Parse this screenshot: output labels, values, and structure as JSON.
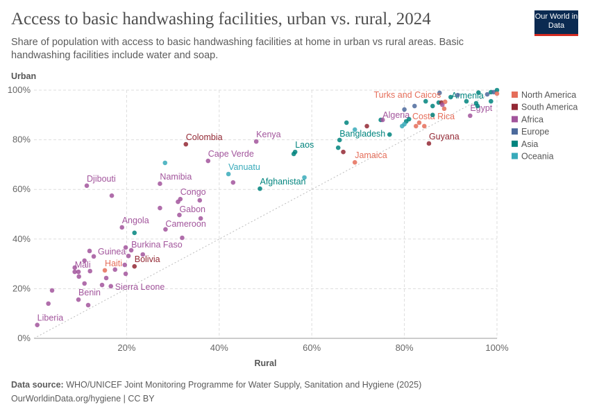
{
  "header": {
    "title": "Access to basic handwashing facilities, urban vs. rural, 2024",
    "subtitle": "Share of population with access to basic handwashing facilities at home in urban vs rural areas. Basic handwashing facilities include water and soap.",
    "logo": "Our World in Data"
  },
  "footer": {
    "source_label": "Data source:",
    "source": "WHO/UNICEF Joint Monitoring Programme for Water Supply, Sanitation and Hygiene (2025)",
    "url": "OurWorldinData.org/hygiene | CC BY"
  },
  "colors": {
    "North America": "#e56e5a",
    "South America": "#932834",
    "Africa": "#a2559c",
    "Europe": "#4c6a9c",
    "Asia": "#00847e",
    "Oceania": "#38aaba"
  },
  "chart_data": {
    "type": "scatter",
    "xlabel": "Rural",
    "ylabel": "Urban",
    "xlim": [
      0,
      100
    ],
    "ylim": [
      0,
      100
    ],
    "xticks": [
      "20%",
      "40%",
      "60%",
      "80%",
      "100%"
    ],
    "yticks": [
      "0%",
      "20%",
      "40%",
      "60%",
      "80%",
      "100%"
    ],
    "grid": true,
    "reference_line": "y = x",
    "legend_position": "right",
    "legend": [
      "North America",
      "South America",
      "Africa",
      "Europe",
      "Asia",
      "Oceania"
    ],
    "points": [
      {
        "x": 0.7,
        "y": 5.4,
        "r": "Africa",
        "label": "Liberia"
      },
      {
        "x": 3.1,
        "y": 14,
        "r": "Africa"
      },
      {
        "x": 3.9,
        "y": 19.3,
        "r": "Africa"
      },
      {
        "x": 9.6,
        "y": 15.6,
        "r": "Africa",
        "label": "Benin"
      },
      {
        "x": 11.7,
        "y": 13.4,
        "r": "Africa"
      },
      {
        "x": 8.8,
        "y": 28.5,
        "r": "Africa"
      },
      {
        "x": 8.8,
        "y": 26.8,
        "r": "Africa",
        "label": "Mali"
      },
      {
        "x": 9.6,
        "y": 26.8,
        "r": "Africa"
      },
      {
        "x": 12.1,
        "y": 27.1,
        "r": "Africa"
      },
      {
        "x": 9.7,
        "y": 24.9,
        "r": "Africa"
      },
      {
        "x": 10.9,
        "y": 31.3,
        "r": "Africa"
      },
      {
        "x": 10.9,
        "y": 22.1,
        "r": "Africa"
      },
      {
        "x": 12,
        "y": 35.2,
        "r": "Africa"
      },
      {
        "x": 12.9,
        "y": 33,
        "r": "Africa",
        "label": "Guinea"
      },
      {
        "x": 15.3,
        "y": 27.4,
        "r": "North America",
        "label": "Haiti"
      },
      {
        "x": 17.5,
        "y": 27.7,
        "r": "Africa"
      },
      {
        "x": 19.6,
        "y": 29.6,
        "r": "Africa"
      },
      {
        "x": 21.7,
        "y": 29,
        "r": "South America",
        "label": "Bolivia"
      },
      {
        "x": 19.8,
        "y": 26,
        "r": "Africa"
      },
      {
        "x": 15.6,
        "y": 24.3,
        "r": "Africa"
      },
      {
        "x": 14.7,
        "y": 21.5,
        "r": "Africa"
      },
      {
        "x": 16.6,
        "y": 21,
        "r": "Africa",
        "label": "Sierra Leone"
      },
      {
        "x": 19.8,
        "y": 36.6,
        "r": "Africa"
      },
      {
        "x": 21,
        "y": 35.5,
        "r": "Africa",
        "label": "Burkina Faso"
      },
      {
        "x": 20.4,
        "y": 33.2,
        "r": "Africa"
      },
      {
        "x": 23.5,
        "y": 33.8,
        "r": "Africa"
      },
      {
        "x": 19,
        "y": 44.7,
        "r": "Africa",
        "label": "Angola"
      },
      {
        "x": 21.7,
        "y": 42.5,
        "r": "Asia"
      },
      {
        "x": 28.4,
        "y": 43.9,
        "r": "Africa",
        "label": "Cameroon"
      },
      {
        "x": 32,
        "y": 40.5,
        "r": "Africa"
      },
      {
        "x": 31.4,
        "y": 49.7,
        "r": "Africa",
        "label": "Gabon"
      },
      {
        "x": 36,
        "y": 48.3,
        "r": "Africa"
      },
      {
        "x": 27.2,
        "y": 52.5,
        "r": "Africa"
      },
      {
        "x": 31.6,
        "y": 56.1,
        "r": "Africa",
        "label": "Congo"
      },
      {
        "x": 31.1,
        "y": 55,
        "r": "Africa"
      },
      {
        "x": 35.8,
        "y": 55.6,
        "r": "Africa"
      },
      {
        "x": 27.2,
        "y": 62.3,
        "r": "Africa",
        "label": "Namibia"
      },
      {
        "x": 11.4,
        "y": 61.5,
        "r": "Africa",
        "label": "Djibouti"
      },
      {
        "x": 16.8,
        "y": 57.5,
        "r": "Africa"
      },
      {
        "x": 28.3,
        "y": 70.7,
        "r": "Oceania"
      },
      {
        "x": 32.8,
        "y": 78.2,
        "r": "South America",
        "label": "Colombia"
      },
      {
        "x": 48,
        "y": 79.3,
        "r": "Africa",
        "label": "Kenya"
      },
      {
        "x": 37.6,
        "y": 71.5,
        "r": "Africa",
        "label": "Cape Verde"
      },
      {
        "x": 42,
        "y": 66.2,
        "r": "Oceania",
        "label": "Vanuatu"
      },
      {
        "x": 43,
        "y": 62.8,
        "r": "Africa"
      },
      {
        "x": 48.8,
        "y": 60.3,
        "r": "Asia",
        "label": "Afghanistan"
      },
      {
        "x": 56.1,
        "y": 74.3,
        "r": "Asia"
      },
      {
        "x": 56.4,
        "y": 75.1,
        "r": "Asia",
        "label": "Laos"
      },
      {
        "x": 58.4,
        "y": 64.8,
        "r": "Oceania"
      },
      {
        "x": 69.3,
        "y": 70.9,
        "r": "North America",
        "label": "Jamaica"
      },
      {
        "x": 67.5,
        "y": 86.9,
        "r": "Asia"
      },
      {
        "x": 69.3,
        "y": 84.1,
        "r": "Oceania"
      },
      {
        "x": 71.9,
        "y": 85.5,
        "r": "South America"
      },
      {
        "x": 66,
        "y": 79.9,
        "r": "Asia",
        "label": "Bangladesh"
      },
      {
        "x": 65.7,
        "y": 76.8,
        "r": "Asia"
      },
      {
        "x": 66.8,
        "y": 75.1,
        "r": "South America"
      },
      {
        "x": 74.9,
        "y": 88,
        "r": "Asia"
      },
      {
        "x": 75.3,
        "y": 88,
        "r": "Africa",
        "label": "Algeria"
      },
      {
        "x": 76.8,
        "y": 82.1,
        "r": "Asia"
      },
      {
        "x": 80,
        "y": 92.2,
        "r": "Europe"
      },
      {
        "x": 80.4,
        "y": 87.4,
        "r": "Asia"
      },
      {
        "x": 79.5,
        "y": 85.5,
        "r": "Oceania"
      },
      {
        "x": 80,
        "y": 86.3,
        "r": "Oceania"
      },
      {
        "x": 81,
        "y": 88.3,
        "r": "Asia"
      },
      {
        "x": 82.2,
        "y": 93.6,
        "r": "Europe"
      },
      {
        "x": 82.5,
        "y": 85.5,
        "r": "North America"
      },
      {
        "x": 83.2,
        "y": 86.9,
        "r": "North America",
        "label": "Costa Rica"
      },
      {
        "x": 84.3,
        "y": 85.5,
        "r": "North America"
      },
      {
        "x": 84.6,
        "y": 95.5,
        "r": "Asia"
      },
      {
        "x": 86.1,
        "y": 93.6,
        "r": "Asia"
      },
      {
        "x": 86.1,
        "y": 90,
        "r": "Asia"
      },
      {
        "x": 87.6,
        "y": 98.9,
        "r": "Europe"
      },
      {
        "x": 87.4,
        "y": 95,
        "r": "Asia"
      },
      {
        "x": 88,
        "y": 95,
        "r": "South America"
      },
      {
        "x": 88.8,
        "y": 95.3,
        "r": "North America",
        "label": "Turks and Caicos"
      },
      {
        "x": 88.2,
        "y": 94.1,
        "r": "Africa"
      },
      {
        "x": 88.6,
        "y": 92.5,
        "r": "North America"
      },
      {
        "x": 85.3,
        "y": 78.5,
        "r": "South America",
        "label": "Guyana"
      },
      {
        "x": 94.2,
        "y": 89.7,
        "r": "Africa",
        "label": "Egypt"
      },
      {
        "x": 90,
        "y": 97.2,
        "r": "Asia",
        "label": "Armenia"
      },
      {
        "x": 91.5,
        "y": 98,
        "r": "Europe"
      },
      {
        "x": 93.4,
        "y": 95.5,
        "r": "Asia"
      },
      {
        "x": 95.5,
        "y": 94.7,
        "r": "Asia"
      },
      {
        "x": 95.8,
        "y": 93.6,
        "r": "Asia"
      },
      {
        "x": 98.7,
        "y": 95.5,
        "r": "Asia"
      },
      {
        "x": 97.9,
        "y": 98.3,
        "r": "Europe"
      },
      {
        "x": 98.7,
        "y": 99.2,
        "r": "Asia"
      },
      {
        "x": 99.3,
        "y": 99.2,
        "r": "Europe"
      },
      {
        "x": 100,
        "y": 100,
        "r": "Asia"
      },
      {
        "x": 100,
        "y": 98.6,
        "r": "North America"
      },
      {
        "x": 96,
        "y": 99,
        "r": "Asia"
      }
    ]
  }
}
